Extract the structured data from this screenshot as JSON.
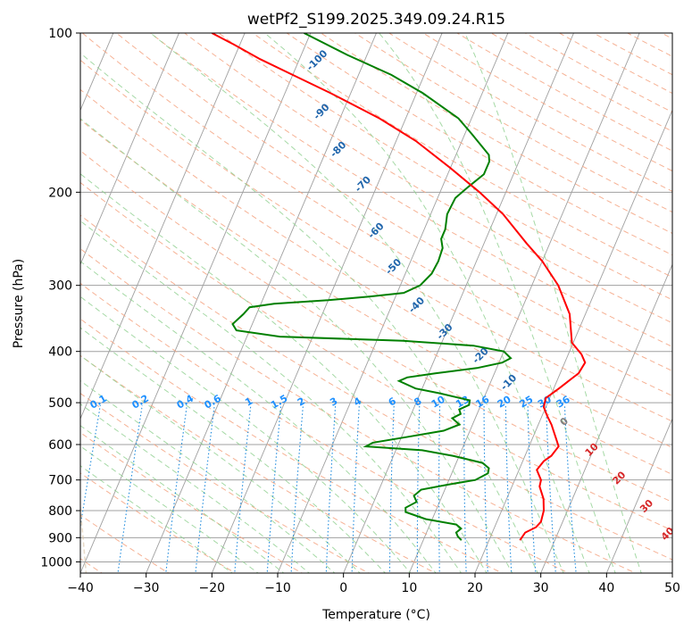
{
  "chart_data": {
    "type": "line",
    "subtype": "skew-t log-p diagram",
    "title": "wetPf2_S199.2025.349.09.24.R15",
    "xlabel": "Temperature (°C)",
    "ylabel": "Pressure (hPa)",
    "xlim": [
      -40,
      50
    ],
    "ylim": [
      1050,
      100
    ],
    "xticks": [
      -40,
      -30,
      -20,
      -10,
      0,
      10,
      20,
      30,
      40,
      50
    ],
    "yticks": [
      100,
      200,
      300,
      400,
      500,
      600,
      700,
      800,
      900,
      1000
    ],
    "grid": true,
    "series": [
      {
        "name": "temperature",
        "color": "#ff0000",
        "points": [
          [
            910,
            24.7
          ],
          [
            880,
            25.0
          ],
          [
            860,
            26.3
          ],
          [
            840,
            26.7
          ],
          [
            800,
            26.4
          ],
          [
            760,
            25.6
          ],
          [
            720,
            24.2
          ],
          [
            700,
            24.0
          ],
          [
            670,
            22.7
          ],
          [
            645,
            23.2
          ],
          [
            630,
            24.0
          ],
          [
            605,
            24.5
          ],
          [
            580,
            23.4
          ],
          [
            550,
            22.0
          ],
          [
            530,
            20.8
          ],
          [
            510,
            19.7
          ],
          [
            490,
            19.4
          ],
          [
            470,
            20.8
          ],
          [
            450,
            22.1
          ],
          [
            440,
            22.8
          ],
          [
            420,
            23.1
          ],
          [
            405,
            22.0
          ],
          [
            385,
            19.8
          ],
          [
            370,
            19.1
          ],
          [
            340,
            17.6
          ],
          [
            300,
            14.0
          ],
          [
            270,
            10.0
          ],
          [
            250,
            6.5
          ],
          [
            220,
            1.0
          ],
          [
            200,
            -4.0
          ],
          [
            180,
            -10.0
          ],
          [
            160,
            -17.0
          ],
          [
            145,
            -24.0
          ],
          [
            130,
            -33.0
          ],
          [
            120,
            -40.0
          ],
          [
            112,
            -46.0
          ],
          [
            105,
            -51.0
          ],
          [
            100,
            -55.0
          ]
        ]
      },
      {
        "name": "dewpoint",
        "color": "#008000",
        "points": [
          [
            910,
            15.8
          ],
          [
            895,
            15.0
          ],
          [
            880,
            14.5
          ],
          [
            865,
            15.0
          ],
          [
            850,
            14.0
          ],
          [
            830,
            9.0
          ],
          [
            805,
            5.5
          ],
          [
            790,
            5.2
          ],
          [
            770,
            6.5
          ],
          [
            750,
            5.7
          ],
          [
            730,
            6.4
          ],
          [
            715,
            10.0
          ],
          [
            700,
            14.0
          ],
          [
            680,
            15.5
          ],
          [
            665,
            15.3
          ],
          [
            650,
            14.0
          ],
          [
            630,
            9.0
          ],
          [
            615,
            4.0
          ],
          [
            605,
            -4.8
          ],
          [
            595,
            -4.0
          ],
          [
            580,
            1.0
          ],
          [
            565,
            6.0
          ],
          [
            550,
            8.0
          ],
          [
            535,
            6.5
          ],
          [
            525,
            7.5
          ],
          [
            515,
            7.0
          ],
          [
            505,
            8.2
          ],
          [
            495,
            8.0
          ],
          [
            480,
            3.0
          ],
          [
            470,
            -1.0
          ],
          [
            455,
            -4.0
          ],
          [
            448,
            -3.0
          ],
          [
            440,
            1.0
          ],
          [
            430,
            7.0
          ],
          [
            420,
            10.5
          ],
          [
            412,
            11.5
          ],
          [
            400,
            10.0
          ],
          [
            390,
            5.0
          ],
          [
            382,
            -6.0
          ],
          [
            375,
            -25.0
          ],
          [
            365,
            -32.0
          ],
          [
            355,
            -33.0
          ],
          [
            340,
            -32.0
          ],
          [
            330,
            -31.5
          ],
          [
            325,
            -28.0
          ],
          [
            320,
            -20.0
          ],
          [
            315,
            -14.0
          ],
          [
            310,
            -9.0
          ],
          [
            300,
            -7.0
          ],
          [
            285,
            -6.0
          ],
          [
            270,
            -5.8
          ],
          [
            255,
            -6.0
          ],
          [
            245,
            -6.8
          ],
          [
            235,
            -6.8
          ],
          [
            220,
            -7.5
          ],
          [
            205,
            -7.3
          ],
          [
            195,
            -6.0
          ],
          [
            185,
            -4.5
          ],
          [
            175,
            -4.5
          ],
          [
            170,
            -5.0
          ],
          [
            155,
            -9.0
          ],
          [
            145,
            -12.0
          ],
          [
            130,
            -19.0
          ],
          [
            120,
            -25.0
          ],
          [
            110,
            -33.0
          ],
          [
            100,
            -41.0
          ]
        ]
      }
    ],
    "dry_adiabat_labels": [
      "-100",
      "-90",
      "-80",
      "-70",
      "-60",
      "-50",
      "-40",
      "-30",
      "-20",
      "-10",
      "0",
      "10",
      "20",
      "30",
      "40"
    ],
    "mixing_ratio_labels": [
      "0.1",
      "0.2",
      "0.4",
      "0.6",
      "1",
      "1.5",
      "2",
      "3",
      "4",
      "6",
      "8",
      "10",
      "13",
      "16",
      "20",
      "25",
      "30",
      "36"
    ],
    "colors": {
      "isotherm": "#a0a0a0",
      "isobar": "#a0a0a0",
      "dry_adiabat": "#f4a582",
      "moist_adiabat": "#8fd08f",
      "mixing_ratio": "#1f8bdd",
      "dry_adiabat_label_cold": "#2166ac",
      "dry_adiabat_label_zero": "#7f7f7f",
      "dry_adiabat_label_warm": "#d62728",
      "mixing_ratio_label": "#1e90ff",
      "boundary": "#d8c3a5"
    }
  }
}
